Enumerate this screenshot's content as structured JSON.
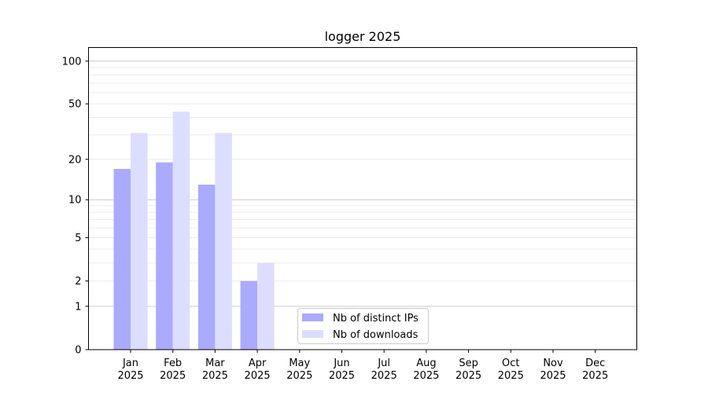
{
  "chart_data": {
    "type": "bar",
    "title": "logger 2025",
    "xlabel": "",
    "ylabel": "",
    "yscale": "log(1+y)",
    "ylim": [
      0,
      120
    ],
    "yticks": [
      0,
      1,
      2,
      5,
      10,
      20,
      50,
      100
    ],
    "grid": true,
    "legend_position": "lower-center",
    "categories": [
      "Jan\n2025",
      "Feb\n2025",
      "Mar\n2025",
      "Apr\n2025",
      "May\n2025",
      "Jun\n2025",
      "Jul\n2025",
      "Aug\n2025",
      "Sep\n2025",
      "Oct\n2025",
      "Nov\n2025",
      "Dec\n2025"
    ],
    "series": [
      {
        "name": "Nb of distinct IPs",
        "color": "#aaaaff",
        "values": [
          17,
          19,
          13,
          2,
          0,
          0,
          0,
          0,
          0,
          0,
          0,
          0
        ]
      },
      {
        "name": "Nb of downloads",
        "color": "#ddddff",
        "values": [
          31,
          44,
          31,
          3,
          0,
          0,
          0,
          0,
          0,
          0,
          0,
          0
        ]
      }
    ]
  }
}
